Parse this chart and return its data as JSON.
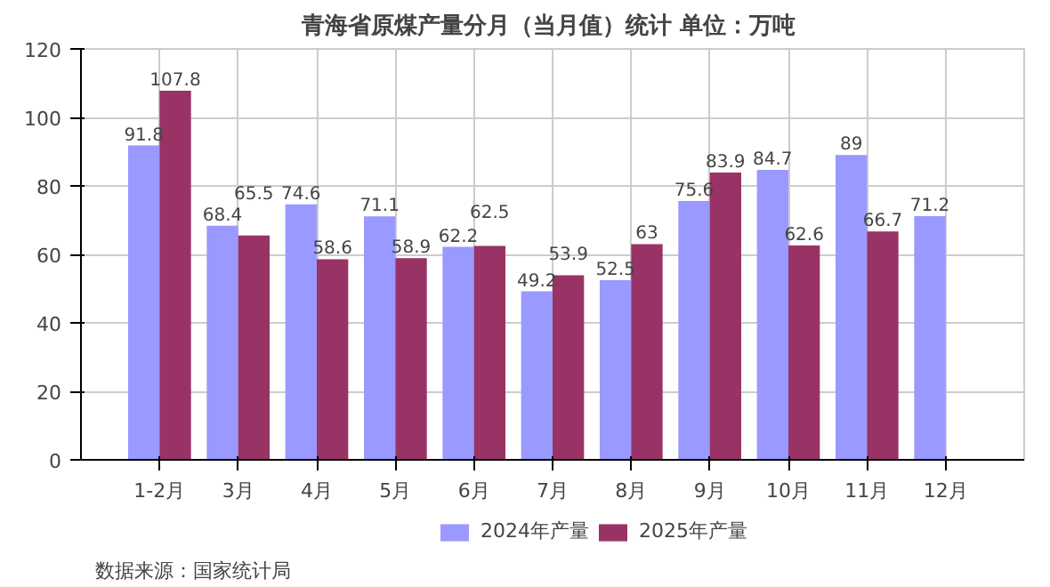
{
  "chart_data": {
    "type": "bar",
    "title": "青海省原煤产量分月（当月值）统计  单位：万吨",
    "categories": [
      "1-2月",
      "3月",
      "4月",
      "5月",
      "6月",
      "7月",
      "8月",
      "9月",
      "10月",
      "11月",
      "12月"
    ],
    "series": [
      {
        "name": "2024年产量",
        "color": "#9999ff",
        "values": [
          91.8,
          68.4,
          74.6,
          71.1,
          62.2,
          49.2,
          52.5,
          75.6,
          84.7,
          89,
          71.2
        ]
      },
      {
        "name": "2025年产量",
        "color": "#993366",
        "values": [
          107.8,
          65.5,
          58.6,
          58.9,
          62.5,
          53.9,
          63,
          83.9,
          62.6,
          66.7,
          null
        ]
      }
    ],
    "ylim": [
      0,
      120
    ],
    "yticks": [
      0,
      20,
      40,
      60,
      80,
      100,
      120
    ],
    "grid": true,
    "legend": "bottom",
    "data_labels": true,
    "annotations": [
      "数据来源：国家统计局"
    ]
  }
}
